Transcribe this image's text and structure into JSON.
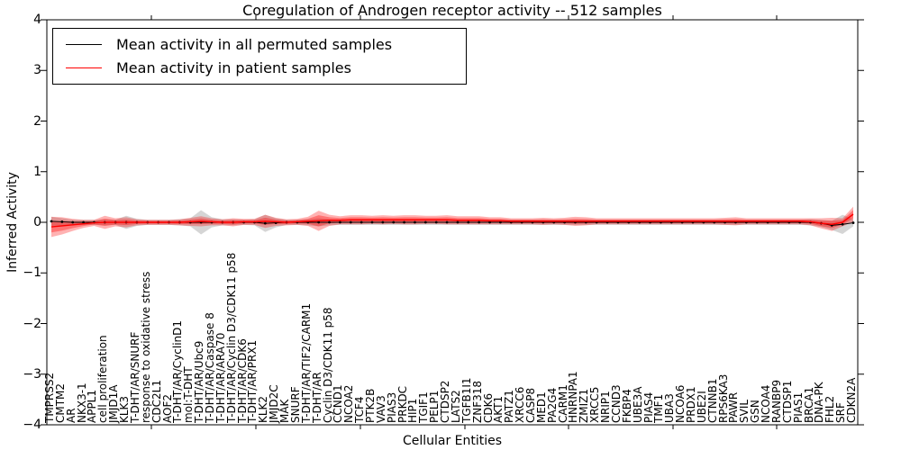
{
  "chart_data": {
    "type": "line",
    "title": "Coregulation of Androgen receptor activity -- 512 samples",
    "xlabel": "Cellular Entities",
    "ylabel": "Inferred Activity",
    "ylim": [
      -4,
      4
    ],
    "grid": false,
    "legend_position": "upper left",
    "ytick_labels": [
      "4",
      "3",
      "2",
      "1",
      "0",
      "−1",
      "−2",
      "−3",
      "−4"
    ],
    "categories": [
      "TMPRSS2",
      "CMTM2",
      "AR",
      "NKX3-1",
      "APPL1",
      "cell proliferation",
      "JMJD1A",
      "KLK3",
      "T-DHT/AR/SNURF",
      "response to oxidative stress",
      "CDC2L1",
      "AOF2",
      "T-DHT/AR/CyclinD1",
      "mol:T-DHT",
      "T-DHT/AR/Ubc9",
      "T-DHT/AR/Caspase 8",
      "T-DHT/AR/ARA70",
      "T-DHT/AR/Cyclin D3/CDK11 p58",
      "T-DHT/AR/CDK6",
      "T-DHT/AR/PRX1",
      "KLK2",
      "JMJD2C",
      "MAK",
      "SNURF",
      "T-DHT/AR/TIF2/CARM1",
      "T-DHT/AR",
      "Cyclin D3/CDK11 p58",
      "CCND1",
      "NCOA2",
      "TCF4",
      "PTK2B",
      "VAV3",
      "PIAS3",
      "PRKDC",
      "HIP1",
      "TGIF1",
      "PELP1",
      "CTDSP2",
      "LATS2",
      "TGFB1I1",
      "ZNF318",
      "CDK6",
      "AKT1",
      "PATZ1",
      "XRCC6",
      "CASP8",
      "MED1",
      "PA2G4",
      "CARM1",
      "HNRNPA1",
      "ZMIZ1",
      "XRCC5",
      "NRIP1",
      "CCND3",
      "FKBP4",
      "UBE3A",
      "PIAS4",
      "TMF1",
      "UBA3",
      "NCOA6",
      "PRDX1",
      "UBE2I",
      "CTNNB1",
      "RPS6KA3",
      "PAWR",
      "SVIL",
      "GSN",
      "NCOA4",
      "RANBP9",
      "CTDSP1",
      "PIAS1",
      "BRCA1",
      "DNA-PK",
      "FHL2",
      "SRF",
      "CDKN2A"
    ],
    "series": [
      {
        "name": "Mean activity in all permuted samples",
        "color": "#000000",
        "band_color": "#888888",
        "marker": "dot",
        "values": [
          0.02,
          0.01,
          0,
          0,
          0,
          0,
          0,
          0,
          0,
          0,
          0,
          0,
          0,
          0,
          0,
          0,
          0,
          0,
          0,
          0,
          -0.02,
          -0.01,
          0,
          0,
          0,
          0,
          0,
          0,
          0,
          0,
          0,
          0,
          0,
          0,
          0,
          0,
          0,
          0,
          0,
          0,
          0,
          0,
          0,
          0,
          0,
          0,
          0,
          0,
          0,
          0,
          0,
          0,
          0,
          0,
          0,
          0,
          0,
          0,
          0,
          0,
          0,
          0,
          0,
          0,
          0,
          0,
          0,
          0,
          0,
          0,
          0,
          0,
          -0.02,
          -0.06,
          -0.04,
          -0.01
        ],
        "band_halfwidth": [
          0.09,
          0.07,
          0.05,
          0.05,
          0.05,
          0.06,
          0.05,
          0.13,
          0.07,
          0.05,
          0.05,
          0.05,
          0.06,
          0.08,
          0.24,
          0.1,
          0.06,
          0.06,
          0.05,
          0.06,
          0.17,
          0.09,
          0.05,
          0.05,
          0.06,
          0.08,
          0.06,
          0.05,
          0.05,
          0.05,
          0.05,
          0.05,
          0.05,
          0.05,
          0.05,
          0.05,
          0.05,
          0.05,
          0.05,
          0.05,
          0.05,
          0.05,
          0.05,
          0.05,
          0.05,
          0.05,
          0.05,
          0.05,
          0.05,
          0.05,
          0.05,
          0.05,
          0.05,
          0.05,
          0.05,
          0.05,
          0.05,
          0.05,
          0.05,
          0.05,
          0.05,
          0.05,
          0.05,
          0.05,
          0.05,
          0.05,
          0.05,
          0.05,
          0.05,
          0.05,
          0.05,
          0.06,
          0.07,
          0.09,
          0.19,
          0.07
        ]
      },
      {
        "name": "Mean activity in patient samples",
        "color": "#ff0000",
        "band_color": "#ff0000",
        "marker": "none",
        "values": [
          -0.09,
          -0.07,
          -0.05,
          -0.03,
          -0.01,
          0,
          0,
          0,
          0,
          0,
          0,
          0,
          0,
          0.01,
          0.02,
          0.01,
          0,
          0,
          0.01,
          0.01,
          0.02,
          0.01,
          0,
          0.01,
          0.02,
          0.03,
          0.04,
          0.04,
          0.05,
          0.05,
          0.05,
          0.05,
          0.05,
          0.05,
          0.05,
          0.05,
          0.05,
          0.05,
          0.04,
          0.04,
          0.04,
          0.03,
          0.03,
          0.02,
          0.02,
          0.02,
          0.02,
          0.02,
          0.02,
          0.02,
          0.02,
          0.02,
          0.02,
          0.02,
          0.02,
          0.02,
          0.02,
          0.02,
          0.02,
          0.02,
          0.02,
          0.02,
          0.02,
          0.02,
          0.02,
          0.02,
          0.02,
          0.02,
          0.02,
          0.02,
          0.02,
          0.01,
          -0.02,
          -0.04,
          0,
          0.16
        ],
        "band_halfwidth": [
          0.2,
          0.17,
          0.12,
          0.08,
          0.06,
          0.13,
          0.08,
          0.1,
          0.06,
          0.05,
          0.05,
          0.05,
          0.06,
          0.08,
          0.1,
          0.07,
          0.06,
          0.08,
          0.06,
          0.06,
          0.13,
          0.08,
          0.06,
          0.06,
          0.09,
          0.2,
          0.11,
          0.08,
          0.09,
          0.09,
          0.08,
          0.09,
          0.08,
          0.09,
          0.09,
          0.08,
          0.08,
          0.09,
          0.08,
          0.08,
          0.08,
          0.07,
          0.07,
          0.06,
          0.06,
          0.06,
          0.07,
          0.06,
          0.07,
          0.09,
          0.08,
          0.06,
          0.06,
          0.06,
          0.06,
          0.06,
          0.06,
          0.06,
          0.06,
          0.06,
          0.06,
          0.06,
          0.06,
          0.07,
          0.08,
          0.06,
          0.06,
          0.06,
          0.06,
          0.06,
          0.06,
          0.07,
          0.1,
          0.13,
          0.08,
          0.15
        ]
      }
    ]
  }
}
